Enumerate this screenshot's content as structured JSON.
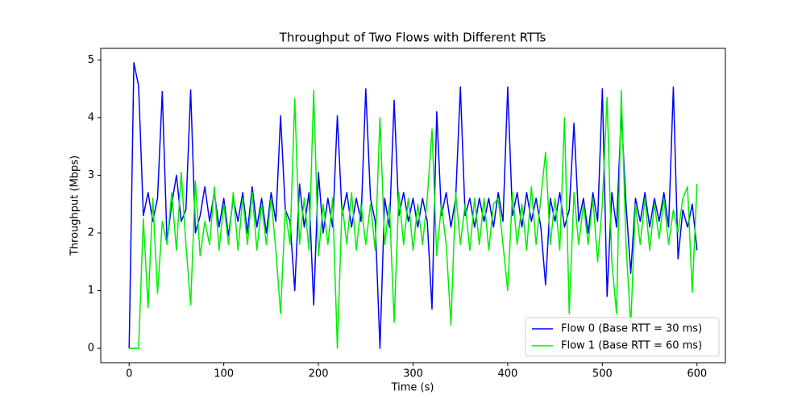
{
  "chart_data": {
    "type": "line",
    "title": "Throughput of Two Flows with Different RTTs",
    "x_label": "Time (s)",
    "y_label": "Throughput (Mbps)",
    "x": [
      0,
      5,
      10,
      15,
      20,
      25,
      30,
      35,
      40,
      45,
      50,
      55,
      60,
      65,
      70,
      75,
      80,
      85,
      90,
      95,
      100,
      105,
      110,
      115,
      120,
      125,
      130,
      135,
      140,
      145,
      150,
      155,
      160,
      165,
      170,
      175,
      180,
      185,
      190,
      195,
      200,
      205,
      210,
      215,
      220,
      225,
      230,
      235,
      240,
      245,
      250,
      255,
      260,
      265,
      270,
      275,
      280,
      285,
      290,
      295,
      300,
      305,
      310,
      315,
      320,
      325,
      330,
      335,
      340,
      345,
      350,
      355,
      360,
      365,
      370,
      375,
      380,
      385,
      390,
      395,
      400,
      405,
      410,
      415,
      420,
      425,
      430,
      435,
      440,
      445,
      450,
      455,
      460,
      465,
      470,
      475,
      480,
      485,
      490,
      495,
      500,
      505,
      510,
      515,
      520,
      525,
      530,
      535,
      540,
      545,
      550,
      555,
      560,
      565,
      570,
      575,
      580,
      585,
      590,
      595,
      600
    ],
    "series": [
      {
        "name": "Flow 0 (Base RTT = 30 ms)",
        "color": "#0000ff",
        "values": [
          0,
          4.95,
          4.55,
          2.3,
          2.7,
          2.2,
          2.6,
          4.45,
          1.85,
          2.5,
          3.0,
          2.2,
          2.4,
          4.48,
          2.0,
          2.3,
          2.8,
          2.2,
          2.7,
          2.1,
          2.6,
          1.95,
          2.6,
          2.2,
          2.7,
          2.0,
          2.8,
          2.1,
          2.6,
          2.0,
          2.7,
          2.2,
          4.03,
          2.4,
          2.2,
          1.0,
          2.85,
          2.1,
          2.7,
          0.75,
          3.05,
          2.0,
          2.6,
          2.1,
          4.03,
          2.3,
          2.7,
          2.1,
          2.6,
          2.2,
          4.5,
          2.6,
          2.2,
          0.0,
          2.6,
          2.1,
          4.3,
          2.3,
          2.7,
          2.2,
          2.6,
          2.1,
          2.6,
          2.2,
          0.68,
          4.1,
          2.3,
          2.7,
          2.1,
          2.6,
          4.53,
          2.3,
          2.6,
          2.1,
          2.6,
          2.2,
          2.6,
          2.1,
          2.7,
          2.2,
          4.53,
          2.3,
          2.7,
          2.1,
          2.7,
          2.2,
          2.6,
          2.1,
          1.1,
          2.6,
          2.2,
          2.7,
          2.1,
          2.4,
          3.9,
          2.2,
          2.6,
          2.0,
          2.7,
          2.2,
          4.5,
          0.9,
          2.7,
          2.1,
          4.1,
          2.5,
          1.3,
          2.6,
          2.2,
          2.7,
          2.1,
          2.6,
          2.2,
          2.7,
          2.1,
          4.53,
          1.55,
          2.4,
          2.1,
          2.5,
          1.7
        ]
      },
      {
        "name": "Flow 1 (Base RTT = 60 ms)",
        "color": "#00ee00",
        "values": [
          0,
          0,
          0,
          2.25,
          0.7,
          2.6,
          0.95,
          2.2,
          1.8,
          2.7,
          1.7,
          3.05,
          1.8,
          0.75,
          2.9,
          1.6,
          2.2,
          1.8,
          2.8,
          1.7,
          2.5,
          1.8,
          2.7,
          1.7,
          2.6,
          1.8,
          2.7,
          1.7,
          2.5,
          1.8,
          2.6,
          1.7,
          0.6,
          2.4,
          1.8,
          4.33,
          1.8,
          2.6,
          1.7,
          4.47,
          1.6,
          2.5,
          1.8,
          2.6,
          0.0,
          2.5,
          1.8,
          2.7,
          1.7,
          2.5,
          1.8,
          2.5,
          1.7,
          4.0,
          1.8,
          2.5,
          0.45,
          2.7,
          1.8,
          2.6,
          1.7,
          2.5,
          1.8,
          2.6,
          3.8,
          1.6,
          2.5,
          1.8,
          0.4,
          2.7,
          1.8,
          2.5,
          1.7,
          2.6,
          1.8,
          2.6,
          1.7,
          2.5,
          2.6,
          1.8,
          1.0,
          2.7,
          1.8,
          2.5,
          1.7,
          2.8,
          1.8,
          2.6,
          3.4,
          1.8,
          2.6,
          1.7,
          4.0,
          0.6,
          2.7,
          1.8,
          2.5,
          1.8,
          2.6,
          1.5,
          2.5,
          4.35,
          1.5,
          0.6,
          4.47,
          1.8,
          0.4,
          2.5,
          1.8,
          2.6,
          1.7,
          2.5,
          1.9,
          2.6,
          1.8,
          2.4,
          2.0,
          2.6,
          2.8,
          0.97,
          2.85
        ]
      }
    ],
    "xlim": [
      -30,
      630
    ],
    "ylim": [
      -0.25,
      5.2
    ],
    "xticks": [
      0,
      100,
      200,
      300,
      400,
      500,
      600
    ],
    "yticks": [
      0,
      1,
      2,
      3,
      4,
      5
    ],
    "grid": false,
    "legend": "lower right"
  }
}
